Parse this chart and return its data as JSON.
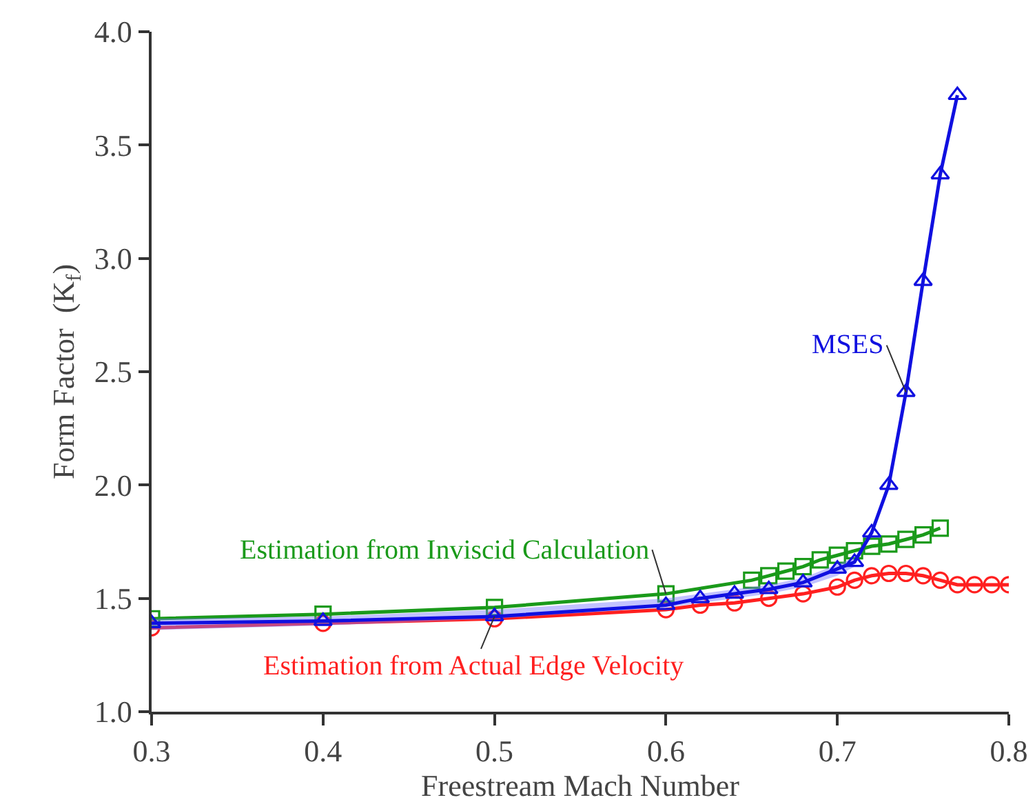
{
  "chart_data": {
    "type": "line",
    "xlabel": "Freestream Mach Number",
    "ylabel": "Form Factor  (K$_{f}$)",
    "xlim": [
      0.3,
      0.8
    ],
    "xticks": [
      0.3,
      0.4,
      0.5,
      0.6,
      0.7,
      0.8
    ],
    "ylim": [
      1.0,
      4.0
    ],
    "yticks": [
      {
        "value": 1,
        "label": "1.0"
      },
      1.5,
      {
        "value": 2,
        "label": "2.0"
      },
      2.5,
      {
        "value": 3,
        "label": "3.0"
      },
      3.5,
      {
        "value": 4,
        "label": "4.0"
      }
    ],
    "grid": false,
    "line_style": "solid",
    "series": [
      {
        "color": "#ff2020",
        "marker": "circle",
        "x": [
          0.3,
          0.4,
          0.5,
          0.6,
          0.62,
          0.64,
          0.66,
          0.68,
          0.7,
          0.71,
          0.72,
          0.73,
          0.74,
          0.75,
          0.76,
          0.77,
          0.78,
          0.79,
          0.8
        ],
        "values": [
          1.37,
          1.39,
          1.41,
          1.45,
          1.47,
          1.48,
          1.5,
          1.52,
          1.55,
          1.58,
          1.6,
          1.61,
          1.61,
          1.6,
          1.58,
          1.56,
          1.56,
          1.56,
          1.56
        ]
      },
      {
        "color": "#1a9a1a",
        "marker": "square",
        "x": [
          0.3,
          0.4,
          0.5,
          0.6,
          0.65,
          0.66,
          0.67,
          0.68,
          0.69,
          0.7,
          0.71,
          0.72,
          0.73,
          0.74,
          0.75,
          0.76
        ],
        "values": [
          1.41,
          1.43,
          1.46,
          1.52,
          1.58,
          1.6,
          1.62,
          1.64,
          1.67,
          1.69,
          1.71,
          1.73,
          1.74,
          1.76,
          1.78,
          1.81
        ]
      },
      {
        "color": "#1010e0",
        "marker": "triangle",
        "x": [
          0.3,
          0.4,
          0.5,
          0.6,
          0.62,
          0.64,
          0.66,
          0.68,
          0.7,
          0.71,
          0.72,
          0.73,
          0.74,
          0.75,
          0.76,
          0.77
        ],
        "values": [
          1.39,
          1.4,
          1.42,
          1.47,
          1.5,
          1.52,
          1.54,
          1.57,
          1.63,
          1.66,
          1.79,
          2.0,
          2.41,
          2.9,
          3.37,
          3.72
        ],
        "lower": [
          1.36,
          1.38,
          1.41,
          1.46,
          1.48,
          1.5,
          1.52,
          1.55,
          1.6,
          1.64,
          null,
          null,
          null,
          null,
          null,
          null
        ],
        "upper": [
          1.41,
          1.42,
          1.45,
          1.5,
          1.52,
          1.54,
          1.56,
          1.59,
          1.65,
          1.68,
          null,
          null,
          null,
          null,
          null,
          null
        ]
      }
    ],
    "annotations": [
      {
        "text": "Estimation from Actual Edge Velocity",
        "x": 0.5,
        "y": 1.42
      },
      {
        "text": "Estimation from Inviscid Calculation",
        "x": 0.6,
        "y": 1.52
      },
      {
        "text": "MSES",
        "x": 0.74,
        "y": 2.41
      }
    ]
  }
}
